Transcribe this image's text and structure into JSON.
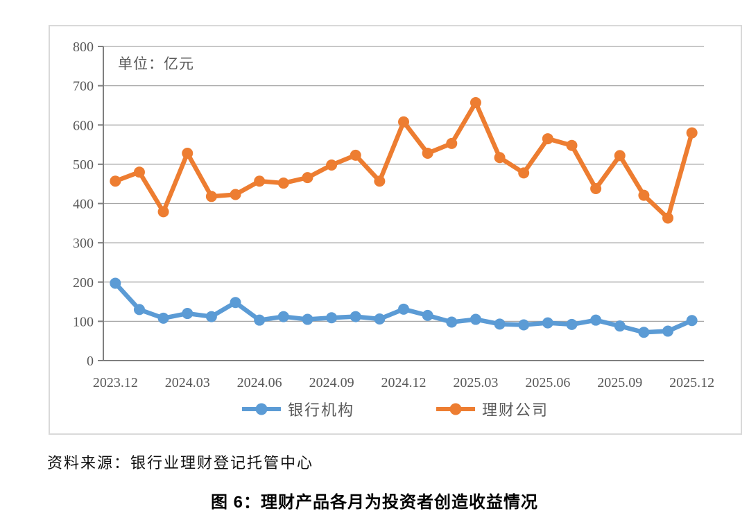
{
  "chart_data": {
    "type": "line",
    "title": "图 6：理财产品各月为投资者创造收益情况",
    "unit_label": "单位：亿元",
    "x": [
      "2023.12",
      "2024.01",
      "2024.02",
      "2024.03",
      "2024.04",
      "2024.05",
      "2024.06",
      "2024.07",
      "2024.08",
      "2024.09",
      "2024.10",
      "2024.11",
      "2024.12",
      "2025.01",
      "2025.02",
      "2025.03",
      "2025.04",
      "2025.05",
      "2025.06",
      "2025.07",
      "2025.08",
      "2025.09",
      "2025.10",
      "2025.11",
      "2025.12"
    ],
    "x_tick_labels": [
      "2023.12",
      "2024.03",
      "2024.06",
      "2024.09",
      "2024.12",
      "2025.03",
      "2025.06",
      "2025.09",
      "2025.12"
    ],
    "y_ticks": [
      0,
      100,
      200,
      300,
      400,
      500,
      600,
      700,
      800
    ],
    "ylim": [
      0,
      800
    ],
    "xlabel": "",
    "ylabel": "",
    "grid": true,
    "legend_position": "bottom",
    "series": [
      {
        "name": "银行机构",
        "color": "#5B9BD5",
        "values": [
          197,
          130,
          108,
          120,
          112,
          148,
          103,
          112,
          105,
          109,
          112,
          106,
          131,
          115,
          98,
          105,
          93,
          91,
          96,
          92,
          103,
          88,
          72,
          75,
          102
        ]
      },
      {
        "name": "理财公司",
        "color": "#ED7D31",
        "values": [
          457,
          480,
          379,
          528,
          418,
          423,
          457,
          452,
          466,
          498,
          523,
          457,
          608,
          528,
          553,
          657,
          517,
          478,
          565,
          548,
          438,
          522,
          421,
          363,
          580
        ]
      }
    ],
    "colors": {
      "grid": "#a6a6a6",
      "axis": "#7f7f7f",
      "tick_text": "#595959"
    }
  },
  "source_note": "资料来源：银行业理财登记托管中心",
  "caption": "图 6：理财产品各月为投资者创造收益情况"
}
